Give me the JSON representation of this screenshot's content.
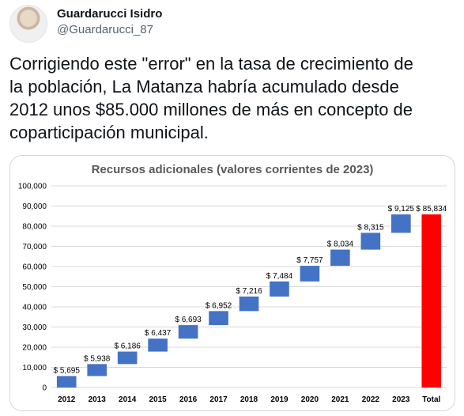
{
  "user": {
    "display_name": "Guardarucci Isidro",
    "handle": "@Guardarucci_87"
  },
  "tweet": {
    "lines": [
      "Corrigiendo este \"error\" en la tasa de crecimiento de",
      "la población, La Matanza habría acumulado desde",
      "2012 unos $85.000 millones de más en concepto de",
      "coparticipación municipal."
    ]
  },
  "chart_data": {
    "type": "bar",
    "subtype": "waterfall",
    "title": "Recursos adicionales (valores corrientes de 2023)",
    "categories": [
      "2012",
      "2013",
      "2014",
      "2015",
      "2016",
      "2017",
      "2018",
      "2019",
      "2020",
      "2021",
      "2022",
      "2023",
      "Total"
    ],
    "values": [
      5695,
      5938,
      6186,
      6437,
      6693,
      6952,
      7216,
      7484,
      7757,
      8034,
      8315,
      9125,
      85834
    ],
    "labels": [
      "$ 5,695",
      "$ 5,938",
      "$ 6,186",
      "$ 6,437",
      "$ 6,693",
      "$ 6,952",
      "$ 7,216",
      "$ 7,484",
      "$ 7,757",
      "$ 8,034",
      "$ 8,315",
      "$ 9,125",
      "$ 85,834"
    ],
    "y_ticks": [
      "0",
      "10,000",
      "20,000",
      "30,000",
      "40,000",
      "50,000",
      "60,000",
      "70,000",
      "80,000",
      "90,000",
      "100,000"
    ],
    "ylim": [
      0,
      100000
    ],
    "grid": true,
    "colors": {
      "step": "#4472c4",
      "total": "#ff0000",
      "grid": "#d9d9d9"
    }
  }
}
